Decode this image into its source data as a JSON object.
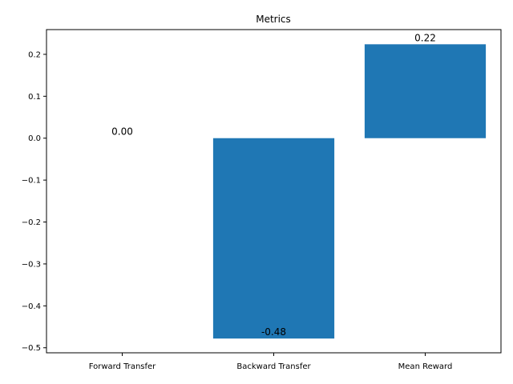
{
  "chart_data": {
    "type": "bar",
    "title": "Metrics",
    "xlabel": "",
    "ylabel": "",
    "categories": [
      "Forward Transfer",
      "Backward Transfer",
      "Mean Reward"
    ],
    "values": [
      0.0,
      -0.478,
      0.224
    ],
    "data_labels": [
      "0.00",
      "-0.48",
      "0.22"
    ],
    "ylim": [
      -0.512,
      0.259
    ],
    "yticks": [
      -0.5,
      -0.4,
      -0.3,
      -0.2,
      -0.1,
      0.0,
      0.1,
      0.2
    ],
    "ytick_labels": [
      "−0.5",
      "−0.4",
      "−0.3",
      "−0.2",
      "−0.1",
      "0.0",
      "0.1",
      "0.2"
    ],
    "grid": false,
    "legend": "none",
    "bar_color": "#1f77b4"
  }
}
